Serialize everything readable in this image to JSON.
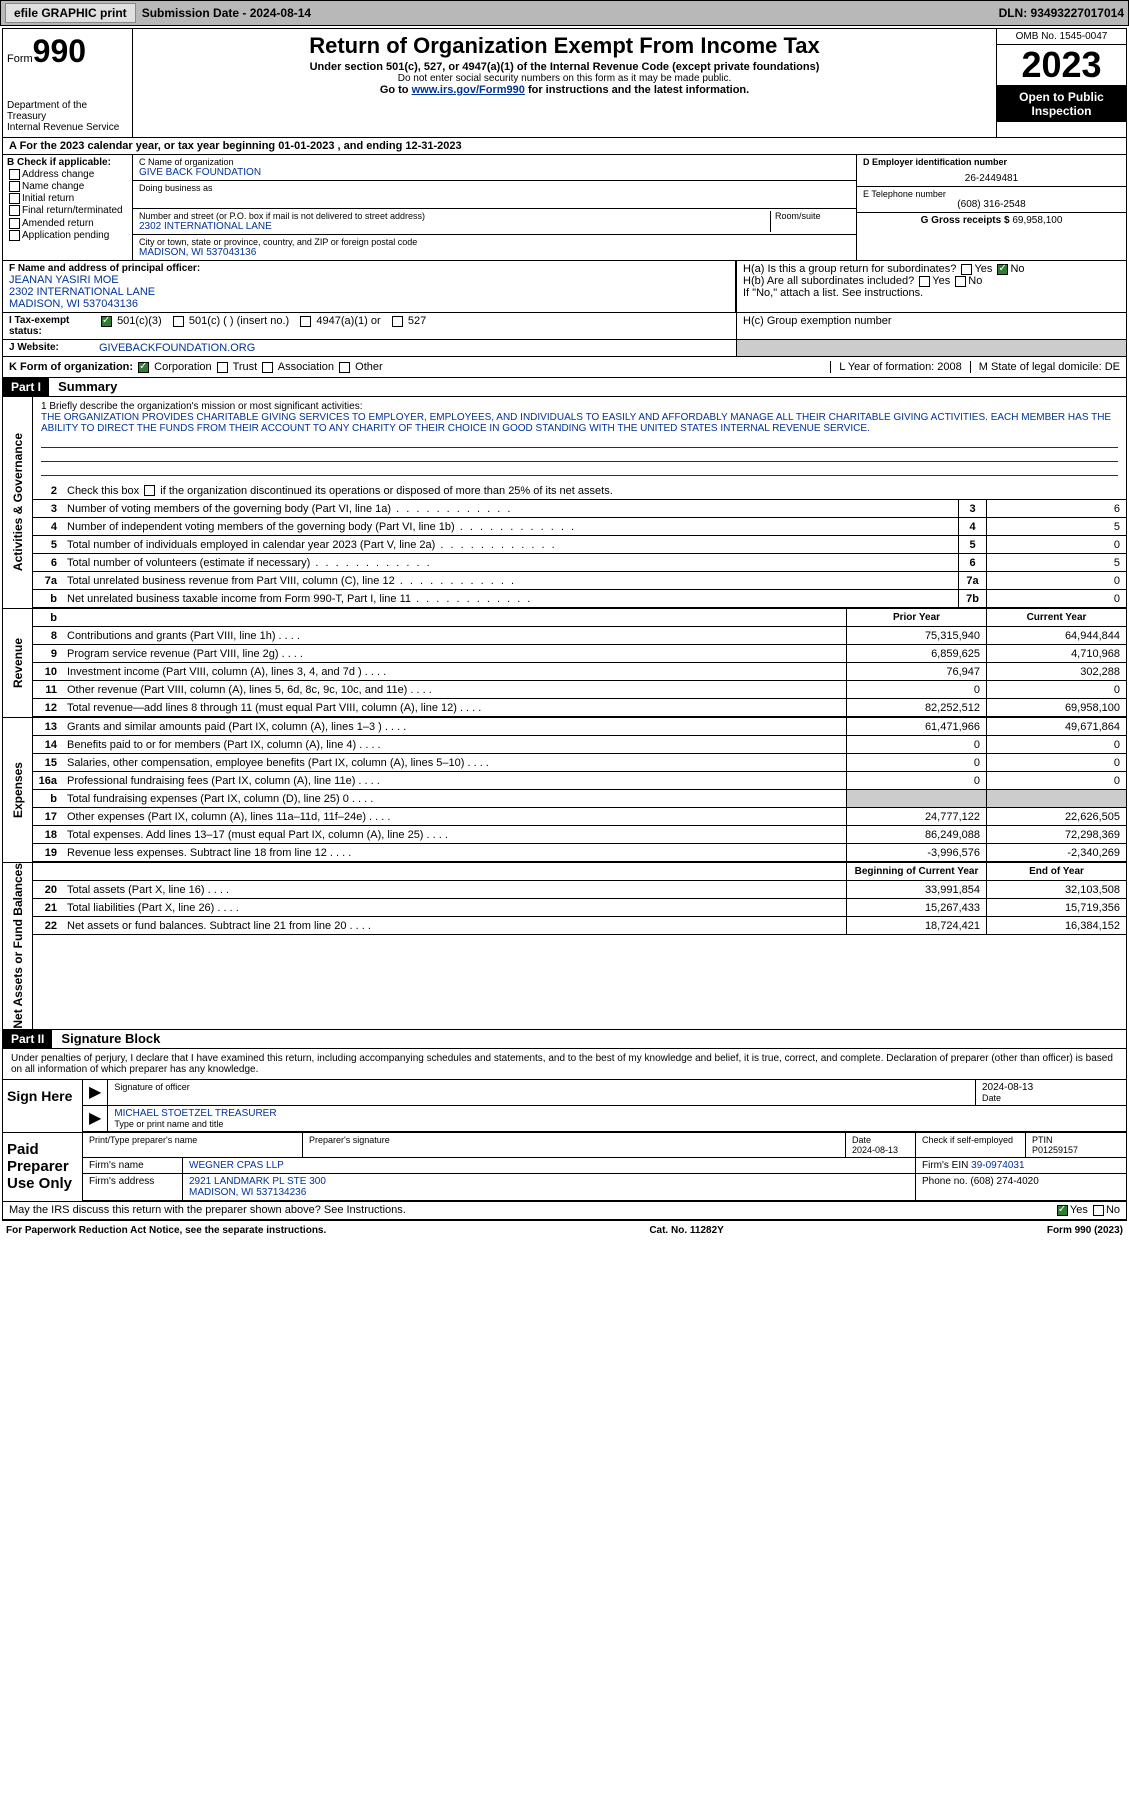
{
  "topbar": {
    "efile": "efile GRAPHIC print",
    "submission": "Submission Date - 2024-08-14",
    "dln": "DLN: 93493227017014"
  },
  "header": {
    "form_label": "Form",
    "form_num": "990",
    "dept": "Department of the Treasury",
    "irs": "Internal Revenue Service",
    "title": "Return of Organization Exempt From Income Tax",
    "sub1": "Under section 501(c), 527, or 4947(a)(1) of the Internal Revenue Code (except private foundations)",
    "sub2": "Do not enter social security numbers on this form as it may be made public.",
    "sub3": "Go to ",
    "sub3_link": "www.irs.gov/Form990",
    "sub3_end": " for instructions and the latest information.",
    "omb": "OMB No. 1545-0047",
    "year": "2023",
    "open": "Open to Public Inspection"
  },
  "row_a": "A For the 2023 calendar year, or tax year beginning 01-01-2023   , and ending 12-31-2023",
  "check_b": {
    "title": "B Check if applicable:",
    "opts": [
      "Address change",
      "Name change",
      "Initial return",
      "Final return/terminated",
      "Amended return",
      "Application pending"
    ]
  },
  "org": {
    "c_lbl": "C Name of organization",
    "name": "GIVE BACK FOUNDATION",
    "dba_lbl": "Doing business as",
    "addr_lbl": "Number and street (or P.O. box if mail is not delivered to street address)",
    "room_lbl": "Room/suite",
    "addr": "2302 INTERNATIONAL LANE",
    "city_lbl": "City or town, state or province, country, and ZIP or foreign postal code",
    "city": "MADISON, WI  537043136"
  },
  "col_d": {
    "d_lbl": "D Employer identification number",
    "ein": "26-2449481",
    "e_lbl": "E Telephone number",
    "phone": "(608) 316-2548",
    "g_lbl": "G Gross receipts $",
    "gross": "69,958,100"
  },
  "officer": {
    "f_lbl": "F Name and address of principal officer:",
    "name": "JEANAN YASIRI MOE",
    "addr1": "2302 INTERNATIONAL LANE",
    "addr2": "MADISON, WI  537043136"
  },
  "h": {
    "ha": "H(a)  Is this a group return for subordinates?",
    "hb": "H(b)  Are all subordinates included?",
    "hb_note": "If \"No,\" attach a list. See instructions.",
    "hc": "H(c)  Group exemption number",
    "yes": "Yes",
    "no": "No"
  },
  "row_i": {
    "lbl": "I     Tax-exempt status:",
    "o1": "501(c)(3)",
    "o2": "501(c) (  ) (insert no.)",
    "o3": "4947(a)(1) or",
    "o4": "527"
  },
  "row_j": {
    "lbl": "J    Website:",
    "val": "GIVEBACKFOUNDATION.ORG"
  },
  "row_k": {
    "lbl": "K Form of organization:",
    "o1": "Corporation",
    "o2": "Trust",
    "o3": "Association",
    "o4": "Other",
    "l": "L Year of formation: 2008",
    "m": "M State of legal domicile: DE"
  },
  "part1": {
    "hdr": "Part I",
    "title": "Summary"
  },
  "mission": {
    "lbl": "1  Briefly describe the organization's mission or most significant activities:",
    "text": "THE ORGANIZATION PROVIDES CHARITABLE GIVING SERVICES TO EMPLOYER, EMPLOYEES, AND INDIVIDUALS TO EASILY AND AFFORDABLY MANAGE ALL THEIR CHARITABLE GIVING ACTIVITIES. EACH MEMBER HAS THE ABILITY TO DIRECT THE FUNDS FROM THEIR ACCOUNT TO ANY CHARITY OF THEIR CHOICE IN GOOD STANDING WITH THE UNITED STATES INTERNAL REVENUE SERVICE."
  },
  "sides": {
    "gov": "Activities & Governance",
    "rev": "Revenue",
    "exp": "Expenses",
    "net": "Net Assets or Fund Balances"
  },
  "lines_gov": [
    {
      "n": "2",
      "d": "Check this box      if the organization discontinued its operations or disposed of more than 25% of its net assets."
    },
    {
      "n": "3",
      "d": "Number of voting members of the governing body (Part VI, line 1a)",
      "box": "3",
      "v": "6"
    },
    {
      "n": "4",
      "d": "Number of independent voting members of the governing body (Part VI, line 1b)",
      "box": "4",
      "v": "5"
    },
    {
      "n": "5",
      "d": "Total number of individuals employed in calendar year 2023 (Part V, line 2a)",
      "box": "5",
      "v": "0"
    },
    {
      "n": "6",
      "d": "Total number of volunteers (estimate if necessary)",
      "box": "6",
      "v": "5"
    },
    {
      "n": "7a",
      "d": "Total unrelated business revenue from Part VIII, column (C), line 12",
      "box": "7a",
      "v": "0"
    },
    {
      "n": "b",
      "d": "Net unrelated business taxable income from Form 990-T, Part I, line 11",
      "box": "7b",
      "v": "0"
    }
  ],
  "cols": {
    "prior": "Prior Year",
    "curr": "Current Year",
    "beg": "Beginning of Current Year",
    "end": "End of Year"
  },
  "lines_rev": [
    {
      "n": "8",
      "d": "Contributions and grants (Part VIII, line 1h)",
      "p": "75,315,940",
      "c": "64,944,844"
    },
    {
      "n": "9",
      "d": "Program service revenue (Part VIII, line 2g)",
      "p": "6,859,625",
      "c": "4,710,968"
    },
    {
      "n": "10",
      "d": "Investment income (Part VIII, column (A), lines 3, 4, and 7d )",
      "p": "76,947",
      "c": "302,288"
    },
    {
      "n": "11",
      "d": "Other revenue (Part VIII, column (A), lines 5, 6d, 8c, 9c, 10c, and 11e)",
      "p": "0",
      "c": "0"
    },
    {
      "n": "12",
      "d": "Total revenue—add lines 8 through 11 (must equal Part VIII, column (A), line 12)",
      "p": "82,252,512",
      "c": "69,958,100"
    }
  ],
  "lines_exp": [
    {
      "n": "13",
      "d": "Grants and similar amounts paid (Part IX, column (A), lines 1–3 )",
      "p": "61,471,966",
      "c": "49,671,864"
    },
    {
      "n": "14",
      "d": "Benefits paid to or for members (Part IX, column (A), line 4)",
      "p": "0",
      "c": "0"
    },
    {
      "n": "15",
      "d": "Salaries, other compensation, employee benefits (Part IX, column (A), lines 5–10)",
      "p": "0",
      "c": "0"
    },
    {
      "n": "16a",
      "d": "Professional fundraising fees (Part IX, column (A), line 11e)",
      "p": "0",
      "c": "0"
    },
    {
      "n": "b",
      "d": "Total fundraising expenses (Part IX, column (D), line 25) 0",
      "p": "",
      "c": "",
      "shade": true
    },
    {
      "n": "17",
      "d": "Other expenses (Part IX, column (A), lines 11a–11d, 11f–24e)",
      "p": "24,777,122",
      "c": "22,626,505"
    },
    {
      "n": "18",
      "d": "Total expenses. Add lines 13–17 (must equal Part IX, column (A), line 25)",
      "p": "86,249,088",
      "c": "72,298,369"
    },
    {
      "n": "19",
      "d": "Revenue less expenses. Subtract line 18 from line 12",
      "p": "-3,996,576",
      "c": "-2,340,269"
    }
  ],
  "lines_net": [
    {
      "n": "20",
      "d": "Total assets (Part X, line 16)",
      "p": "33,991,854",
      "c": "32,103,508"
    },
    {
      "n": "21",
      "d": "Total liabilities (Part X, line 26)",
      "p": "15,267,433",
      "c": "15,719,356"
    },
    {
      "n": "22",
      "d": "Net assets or fund balances. Subtract line 21 from line 20",
      "p": "18,724,421",
      "c": "16,384,152"
    }
  ],
  "part2": {
    "hdr": "Part II",
    "title": "Signature Block"
  },
  "perjury": "Under penalties of perjury, I declare that I have examined this return, including accompanying schedules and statements, and to the best of my knowledge and belief, it is true, correct, and complete. Declaration of preparer (other than officer) is based on all information of which preparer has any knowledge.",
  "sign": {
    "here": "Sign Here",
    "sig_lbl": "Signature of officer",
    "date_lbl": "Date",
    "date": "2024-08-13",
    "name": "MICHAEL STOETZEL TREASURER",
    "type_lbl": "Type or print name and title"
  },
  "prep": {
    "lbl": "Paid Preparer Use Only",
    "h1": "Print/Type preparer's name",
    "h2": "Preparer's signature",
    "h3": "Date",
    "date": "2024-08-13",
    "h4": "Check      if self-employed",
    "h5": "PTIN",
    "ptin": "P01259157",
    "firm_lbl": "Firm's name",
    "firm": "WEGNER CPAS LLP",
    "ein_lbl": "Firm's EIN",
    "ein": "39-0974031",
    "addr_lbl": "Firm's address",
    "addr1": "2921 LANDMARK PL STE 300",
    "addr2": "MADISON, WI  537134236",
    "ph_lbl": "Phone no.",
    "ph": "(608) 274-4020"
  },
  "discuss": "May the IRS discuss this return with the preparer shown above? See Instructions.",
  "footer": {
    "l": "For Paperwork Reduction Act Notice, see the separate instructions.",
    "m": "Cat. No. 11282Y",
    "r": "Form 990 (2023)"
  }
}
